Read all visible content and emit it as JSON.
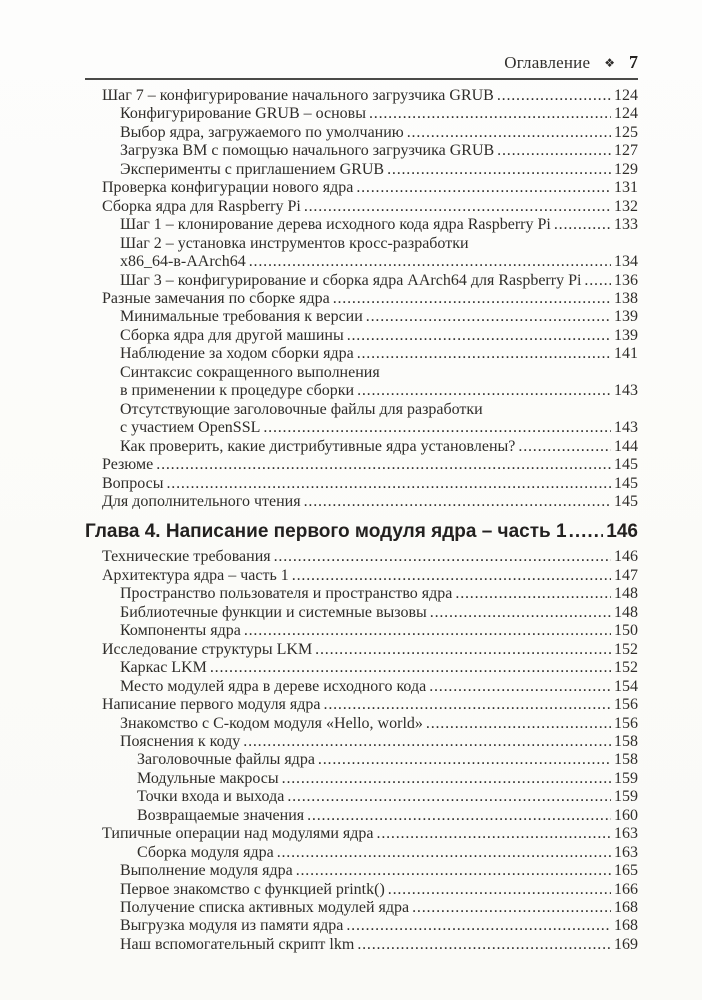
{
  "header": {
    "title": "Оглавление",
    "ornament": "❖",
    "page_number": "7"
  },
  "toc": {
    "entries": [
      {
        "level": 1,
        "title": "Шаг 7 – конфигурирование начального загрузчика GRUB",
        "page": "124"
      },
      {
        "level": 2,
        "title": "Конфигурирование GRUB – основы",
        "page": "124"
      },
      {
        "level": 2,
        "title": "Выбор ядра, загружаемого по умолчанию",
        "page": "125"
      },
      {
        "level": 2,
        "title": "Загрузка ВМ с помощью начального загрузчика GRUB",
        "page": "127"
      },
      {
        "level": 2,
        "title": "Эксперименты с приглашением GRUB",
        "page": "129"
      },
      {
        "level": 1,
        "title": "Проверка конфигурации нового ядра",
        "page": "131"
      },
      {
        "level": 1,
        "title": "Сборка ядра для Raspberry Pi",
        "page": "132"
      },
      {
        "level": 2,
        "title": "Шаг 1 – клонирование дерева исходного кода ядра Raspberry Pi",
        "page": "133"
      },
      {
        "level": 2,
        "title": "Шаг 2 – установка инструментов кросс-разработки",
        "page": null
      },
      {
        "level": 2,
        "title": "x86_64-в-AArch64",
        "page": "134"
      },
      {
        "level": 2,
        "title": "Шаг 3 – конфигурирование и сборка ядра AArch64 для Raspberry Pi",
        "page": "136"
      },
      {
        "level": 1,
        "title": "Разные замечания по сборке ядра",
        "page": "138"
      },
      {
        "level": 2,
        "title": "Минимальные требования к версии",
        "page": "139"
      },
      {
        "level": 2,
        "title": "Сборка ядра для другой машины",
        "page": "139"
      },
      {
        "level": 2,
        "title": "Наблюдение за ходом сборки ядра",
        "page": "141"
      },
      {
        "level": 2,
        "title": "Синтаксис сокращенного выполнения",
        "page": null
      },
      {
        "level": 2,
        "title": "в применении к процедуре сборки",
        "page": "143"
      },
      {
        "level": 2,
        "title": "Отсутствующие заголовочные файлы для разработки",
        "page": null
      },
      {
        "level": 2,
        "title": "с участием OpenSSL",
        "page": "143"
      },
      {
        "level": 2,
        "title": "Как проверить, какие дистрибутивные ядра установлены?",
        "page": "144"
      },
      {
        "level": 1,
        "title": "Резюме",
        "page": "145"
      },
      {
        "level": 1,
        "title": "Вопросы",
        "page": "145"
      },
      {
        "level": 1,
        "title": "Для дополнительного чтения",
        "page": "145"
      },
      {
        "chapter": true,
        "level": 0,
        "title": "Глава 4. Написание первого модуля ядра – часть 1",
        "page": "146"
      },
      {
        "level": 1,
        "title": "Технические требования",
        "page": "146"
      },
      {
        "level": 1,
        "title": "Архитектура ядра – часть 1",
        "page": "147"
      },
      {
        "level": 2,
        "title": "Пространство пользователя и пространство ядра",
        "page": "148"
      },
      {
        "level": 2,
        "title": "Библиотечные функции и системные вызовы",
        "page": "148"
      },
      {
        "level": 2,
        "title": "Компоненты ядра",
        "page": "150"
      },
      {
        "level": 1,
        "title": "Исследование структуры LKM",
        "page": "152"
      },
      {
        "level": 2,
        "title": "Каркас LKM",
        "page": "152"
      },
      {
        "level": 2,
        "title": "Место модулей ядра в дереве исходного кода",
        "page": "154"
      },
      {
        "level": 1,
        "title": "Написание первого модуля ядра",
        "page": "156"
      },
      {
        "level": 2,
        "title": "Знакомство с C-кодом модуля «Hello, world»",
        "page": "156"
      },
      {
        "level": 2,
        "title": "Пояснения к коду",
        "page": "158"
      },
      {
        "level": 3,
        "title": "Заголовочные файлы ядра",
        "page": "158"
      },
      {
        "level": 3,
        "title": "Модульные макросы",
        "page": "159"
      },
      {
        "level": 3,
        "title": "Точки входа и выхода",
        "page": "159"
      },
      {
        "level": 3,
        "title": "Возвращаемые значения",
        "page": "160"
      },
      {
        "level": 1,
        "title": "Типичные операции над модулями ядра",
        "page": "163"
      },
      {
        "level": 3,
        "title": "Сборка модуля ядра",
        "page": "163"
      },
      {
        "level": 2,
        "title": "Выполнение модуля ядра",
        "page": "165"
      },
      {
        "level": 2,
        "title": "Первое знакомство с функцией printk()",
        "page": "166"
      },
      {
        "level": 2,
        "title": "Получение списка активных модулей ядра",
        "page": "168"
      },
      {
        "level": 2,
        "title": "Выгрузка модуля из памяти ядра",
        "page": "168"
      },
      {
        "level": 2,
        "title": "Наш вспомогательный скрипт lkm",
        "page": "169"
      }
    ]
  }
}
